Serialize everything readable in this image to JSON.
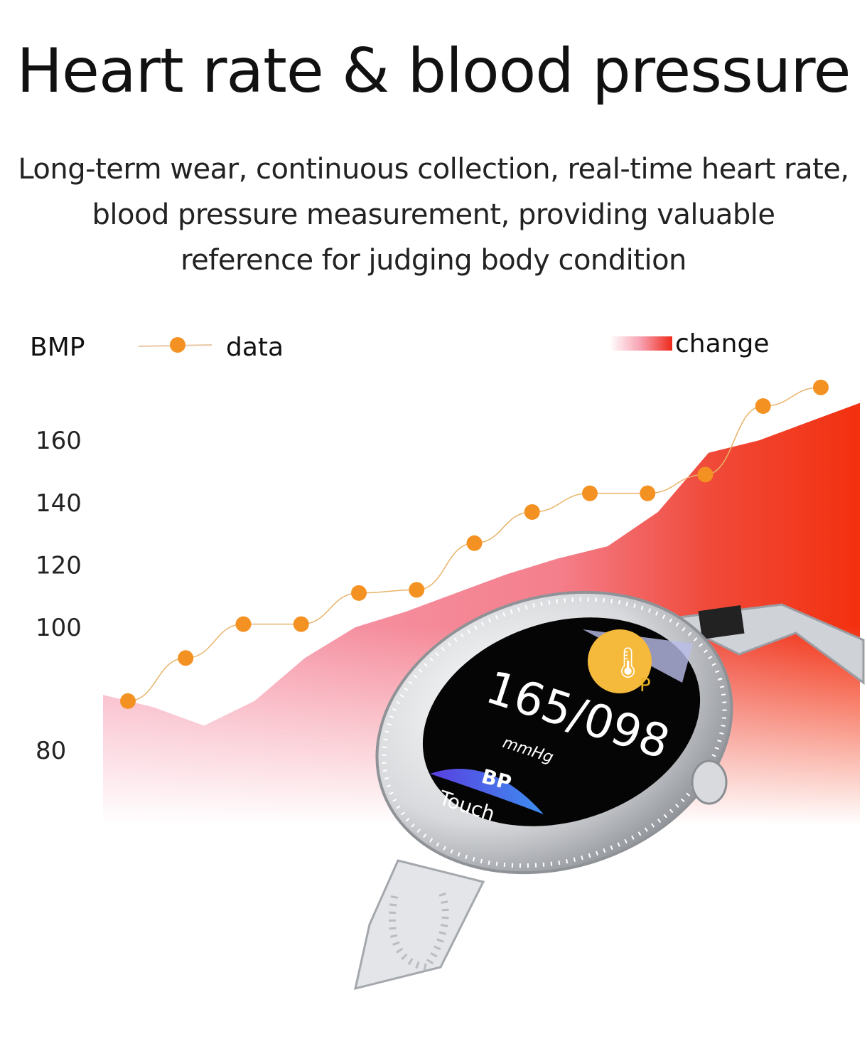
{
  "header": {
    "title": "Heart rate & blood pressure",
    "subtitle_lines": [
      "Long-term wear, continuous collection, real-time heart rate,",
      "blood pressure measurement, providing valuable",
      "reference for judging body condition"
    ]
  },
  "chart_data": {
    "type": "line",
    "ylabel": "BMP",
    "yticks": [
      80,
      100,
      120,
      140,
      160
    ],
    "grid": false,
    "legend_placement": "top",
    "series": [
      {
        "name": "data",
        "kind": "line-markers",
        "color": "#f39222",
        "values": [
          88,
          95,
          101,
          101,
          111,
          112,
          127,
          137,
          143,
          143,
          149,
          171,
          177
        ]
      },
      {
        "name": "change",
        "kind": "area",
        "color": "#f23a1e",
        "values": [
          89,
          87,
          84,
          88,
          95,
          100,
          105,
          111,
          117,
          122,
          126,
          137,
          156,
          160,
          166,
          172
        ]
      }
    ]
  },
  "watch": {
    "reading": "165/098",
    "unit": "mmHg",
    "mode": "BP",
    "action": "Touch",
    "indicator": "P"
  }
}
